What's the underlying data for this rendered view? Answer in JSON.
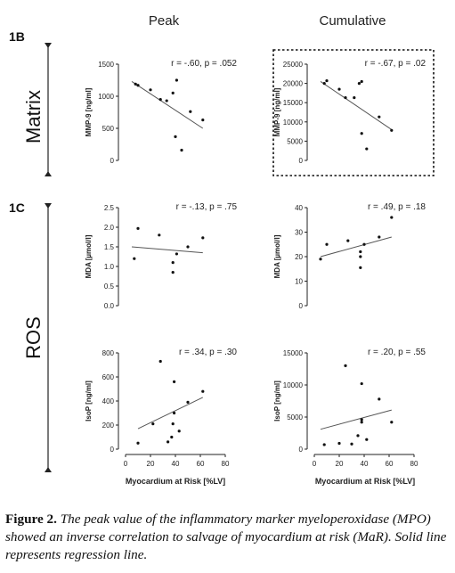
{
  "columns": [
    "Peak",
    "Cumulative"
  ],
  "sections": [
    {
      "label": "1B",
      "row_label": "Matrix"
    },
    {
      "label": "1C",
      "row_label": "ROS"
    }
  ],
  "x_label": "Myocardium at  Risk [%LV]",
  "caption": {
    "lead": "Figure 2.",
    "text": " The peak value of the inflammatory marker myeloperoxidase (MPO) showed an inverse correlation to salvage of myocardium at risk (MaR). Solid line represents regression line."
  },
  "chart_data": [
    {
      "type": "scatter",
      "panel": "matrix-peak",
      "ylabel": "MMP-9 [ng/ml]",
      "stat": "r = -.60, p = .052",
      "xlim": [
        0,
        80
      ],
      "ylim": [
        0,
        1500
      ],
      "yticks": [
        "0",
        "500",
        "1000",
        "1500"
      ],
      "yticks_v": [
        0,
        500,
        1000,
        1500
      ],
      "xticks": [],
      "highlight": false,
      "points": [
        [
          8,
          1190
        ],
        [
          10,
          1170
        ],
        [
          20,
          1100
        ],
        [
          28,
          950
        ],
        [
          33,
          930
        ],
        [
          38,
          1050
        ],
        [
          41,
          1250
        ],
        [
          40,
          370
        ],
        [
          45,
          160
        ],
        [
          52,
          760
        ],
        [
          62,
          630
        ]
      ],
      "line": [
        [
          5,
          1230
        ],
        [
          62,
          500
        ]
      ]
    },
    {
      "type": "scatter",
      "panel": "matrix-cumulative",
      "ylabel": "MMP-9 [ng/ml]",
      "stat": "r = -.67, p = .02",
      "xlim": [
        0,
        80
      ],
      "ylim": [
        0,
        25000
      ],
      "yticks": [
        "0",
        "5000",
        "10000",
        "15000",
        "20000",
        "25000"
      ],
      "yticks_v": [
        0,
        5000,
        10000,
        15000,
        20000,
        25000
      ],
      "xticks": [],
      "highlight": true,
      "points": [
        [
          8,
          20000
        ],
        [
          10,
          20700
        ],
        [
          20,
          18500
        ],
        [
          25,
          16300
        ],
        [
          32,
          16300
        ],
        [
          36,
          20000
        ],
        [
          38,
          20500
        ],
        [
          38,
          7000
        ],
        [
          42,
          3000
        ],
        [
          52,
          11300
        ],
        [
          62,
          7800
        ]
      ],
      "line": [
        [
          5,
          20500
        ],
        [
          62,
          8000
        ]
      ]
    },
    {
      "type": "scatter",
      "panel": "mda-peak",
      "ylabel": "MDA [µmol/l]",
      "stat": "r = -.13, p = .75",
      "xlim": [
        0,
        80
      ],
      "ylim": [
        0,
        2.5
      ],
      "yticks": [
        "0.0",
        "0.5",
        "1.0",
        "1.5",
        "2.0",
        "2.5"
      ],
      "yticks_v": [
        0,
        0.5,
        1,
        1.5,
        2,
        2.5
      ],
      "xticks": [],
      "highlight": false,
      "points": [
        [
          7,
          1.2
        ],
        [
          10,
          1.97
        ],
        [
          27,
          1.8
        ],
        [
          38,
          1.1
        ],
        [
          38,
          0.85
        ],
        [
          41,
          1.32
        ],
        [
          50,
          1.5
        ],
        [
          62,
          1.73
        ]
      ],
      "line": [
        [
          5,
          1.5
        ],
        [
          62,
          1.35
        ]
      ]
    },
    {
      "type": "scatter",
      "panel": "mda-cumulative",
      "ylabel": "MDA [µmol/l]",
      "stat": "r = .49, p = .18",
      "xlim": [
        0,
        80
      ],
      "ylim": [
        0,
        40
      ],
      "yticks": [
        "0",
        "10",
        "20",
        "30",
        "40"
      ],
      "yticks_v": [
        0,
        10,
        20,
        30,
        40
      ],
      "xticks": [],
      "highlight": false,
      "points": [
        [
          5,
          19
        ],
        [
          10,
          25
        ],
        [
          27,
          26.5
        ],
        [
          37,
          22
        ],
        [
          37,
          20
        ],
        [
          37,
          15.5
        ],
        [
          40,
          25
        ],
        [
          52,
          28
        ],
        [
          62,
          36
        ]
      ],
      "line": [
        [
          5,
          20
        ],
        [
          62,
          28
        ]
      ]
    },
    {
      "type": "scatter",
      "panel": "isop-peak",
      "ylabel": "IsoP [ng/ml]",
      "stat": "r = .34, p = .30",
      "xlim": [
        0,
        80
      ],
      "ylim": [
        0,
        800
      ],
      "yticks": [
        "0",
        "200",
        "400",
        "600",
        "800"
      ],
      "yticks_v": [
        0,
        200,
        400,
        600,
        800
      ],
      "xticks": [
        "0",
        "20",
        "40",
        "60",
        "80"
      ],
      "xticks_v": [
        0,
        20,
        40,
        60,
        80
      ],
      "highlight": false,
      "points": [
        [
          10,
          50
        ],
        [
          22,
          210
        ],
        [
          28,
          730
        ],
        [
          34,
          60
        ],
        [
          37,
          100
        ],
        [
          38,
          210
        ],
        [
          39,
          300
        ],
        [
          39,
          560
        ],
        [
          43,
          150
        ],
        [
          50,
          390
        ],
        [
          62,
          480
        ]
      ],
      "line": [
        [
          10,
          170
        ],
        [
          62,
          430
        ]
      ]
    },
    {
      "type": "scatter",
      "panel": "isop-cumulative",
      "ylabel": "IsoP [ng/ml]",
      "stat": "r = .20, p = .55",
      "xlim": [
        0,
        80
      ],
      "ylim": [
        0,
        15000
      ],
      "yticks": [
        "0",
        "5000",
        "10000",
        "15000"
      ],
      "yticks_v": [
        0,
        5000,
        10000,
        15000
      ],
      "xticks": [
        "0",
        "20",
        "40",
        "60",
        "80"
      ],
      "xticks_v": [
        0,
        20,
        40,
        60,
        80
      ],
      "highlight": false,
      "points": [
        [
          8,
          700
        ],
        [
          20,
          900
        ],
        [
          25,
          13000
        ],
        [
          30,
          800
        ],
        [
          35,
          2100
        ],
        [
          38,
          10200
        ],
        [
          38,
          4200
        ],
        [
          38,
          4600
        ],
        [
          42,
          1500
        ],
        [
          52,
          7800
        ],
        [
          62,
          4200
        ]
      ],
      "line": [
        [
          5,
          3100
        ],
        [
          62,
          6100
        ]
      ]
    }
  ]
}
